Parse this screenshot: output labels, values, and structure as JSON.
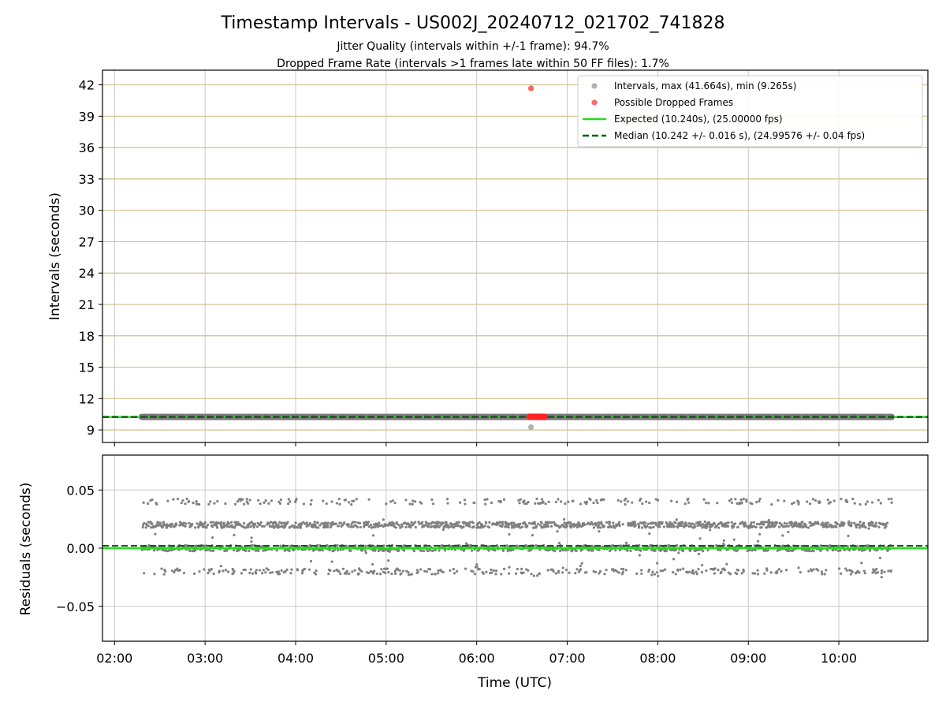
{
  "figure": {
    "title": "Timestamp Intervals - US002J_20240712_021702_741828",
    "subtitle_line1": "Jitter Quality (intervals within +/-1 frame): 94.7%",
    "subtitle_line2": "Dropped Frame Rate (intervals >1 frames late within 50 FF files): 1.7%"
  },
  "chart_data": [
    {
      "type": "scatter",
      "panel": "top",
      "xlabel": "",
      "ylabel": "Intervals (seconds)",
      "ylim": [
        7.8,
        43.4
      ],
      "yticks": [
        9,
        12,
        15,
        18,
        21,
        24,
        27,
        30,
        33,
        36,
        39,
        42
      ],
      "grid": true,
      "legend_position": "top-right",
      "series": [
        {
          "name": "Intervals, max (41.664s), min (9.265s)",
          "kind": "scatter",
          "color": "#808080",
          "x_range": [
            "02:18",
            "10:35"
          ],
          "typical_value": 10.24,
          "outliers": [
            {
              "x": "06:36",
              "y": 9.265
            }
          ]
        },
        {
          "name": "Possible Dropped Frames",
          "kind": "scatter",
          "color": "#ff4444",
          "points": [
            {
              "x": "06:36",
              "y": 41.664
            },
            {
              "x": "06:37",
              "y": 10.28
            },
            {
              "x": "06:39",
              "y": 10.28
            },
            {
              "x": "06:41",
              "y": 10.28
            },
            {
              "x": "06:43",
              "y": 10.28
            }
          ]
        },
        {
          "name": "Expected (10.240s), (25.00000 fps)",
          "kind": "hline",
          "color": "#22dd22",
          "value": 10.24
        },
        {
          "name": "Median (10.242 +/- 0.016 s), (24.99576 +/- 0.04 fps)",
          "kind": "hline-dashed",
          "color": "#006400",
          "value": 10.242
        }
      ]
    },
    {
      "type": "scatter",
      "panel": "bottom",
      "xlabel": "Time (UTC)",
      "ylabel": "Residuals (seconds)",
      "ylim": [
        -0.08,
        0.08
      ],
      "yticks": [
        0.05,
        0.0,
        -0.05
      ],
      "ytick_labels": [
        "0.05",
        "0.00",
        "−0.05"
      ],
      "xticks": [
        "02:00",
        "03:00",
        "04:00",
        "05:00",
        "06:00",
        "07:00",
        "08:00",
        "09:00",
        "10:00"
      ],
      "xlim": [
        "01:52",
        "10:59"
      ],
      "grid": true,
      "series": [
        {
          "name": "",
          "kind": "scatter",
          "color": "#808080",
          "x_range": [
            "02:18",
            "10:35"
          ],
          "residual_bands": [
            0.04,
            0.02,
            0.0,
            -0.02
          ],
          "band_weights": [
            0.08,
            0.42,
            0.38,
            0.12
          ]
        },
        {
          "name": "",
          "kind": "hline",
          "color": "#22dd22",
          "value": 0.0
        },
        {
          "name": "",
          "kind": "hline-dashed",
          "color": "#006400",
          "value": 0.002
        }
      ]
    }
  ]
}
